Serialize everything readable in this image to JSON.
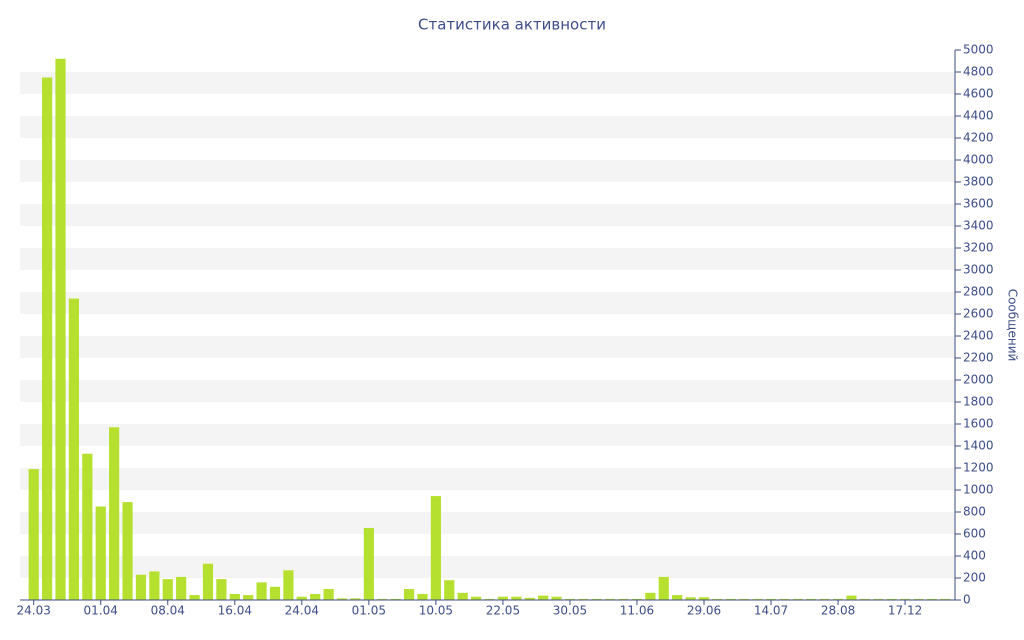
{
  "chart_data": {
    "type": "bar",
    "title": "Статистика активности",
    "y_label": "Сообщений",
    "categories": [
      "24.03",
      null,
      null,
      null,
      null,
      "01.04",
      null,
      null,
      null,
      null,
      "08.04",
      null,
      null,
      null,
      null,
      "16.04",
      null,
      null,
      null,
      null,
      "24.04",
      null,
      null,
      null,
      null,
      "01.05",
      null,
      null,
      null,
      null,
      "10.05",
      null,
      null,
      null,
      null,
      "22.05",
      null,
      null,
      null,
      null,
      "30.05",
      null,
      null,
      null,
      null,
      "11.06",
      null,
      null,
      null,
      null,
      "29.06",
      null,
      null,
      null,
      null,
      "14.07",
      null,
      null,
      null,
      null,
      "28.08",
      null,
      null,
      null,
      null,
      "17.12",
      null,
      null,
      null
    ],
    "values": [
      1190,
      4750,
      4920,
      2740,
      1330,
      850,
      1570,
      890,
      230,
      260,
      190,
      210,
      45,
      330,
      190,
      55,
      45,
      160,
      120,
      270,
      30,
      55,
      100,
      15,
      15,
      655,
      10,
      10,
      100,
      55,
      945,
      180,
      65,
      30,
      10,
      30,
      30,
      20,
      40,
      30,
      10,
      10,
      10,
      10,
      10,
      10,
      65,
      210,
      45,
      25,
      25,
      10,
      10,
      10,
      10,
      10,
      10,
      10,
      10,
      10,
      10,
      40,
      10,
      10,
      10,
      10,
      10,
      10,
      10
    ],
    "color": "#b6e02f",
    "ylim": [
      0,
      5000
    ],
    "yticks": [
      0,
      200,
      400,
      600,
      800,
      1000,
      1200,
      1400,
      1600,
      1800,
      2000,
      2200,
      2400,
      2600,
      2800,
      3000,
      3200,
      3400,
      3600,
      3800,
      4000,
      4200,
      4400,
      4600,
      4800,
      5000
    ],
    "grid": "bands",
    "y_axis_side": "right"
  }
}
